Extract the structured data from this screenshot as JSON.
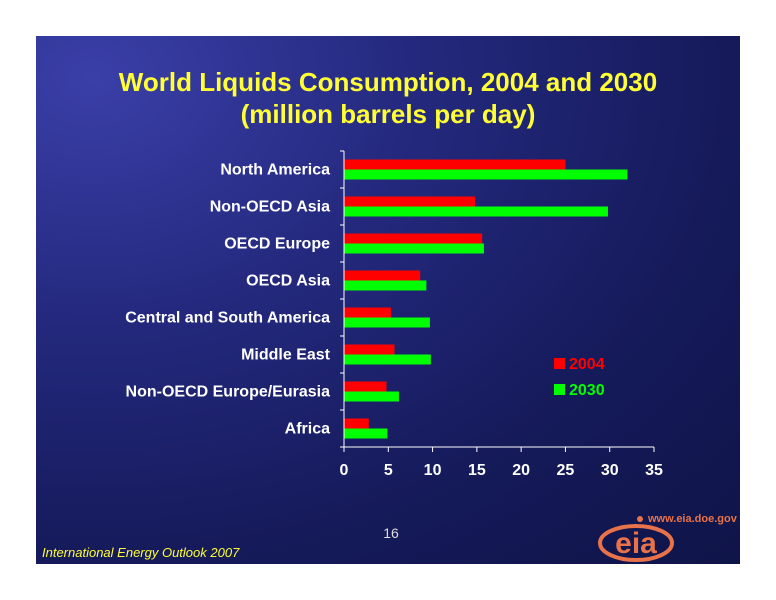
{
  "slide": {
    "title_line1": "World Liquids Consumption, 2004 and 2030",
    "title_line2": "(million barrels per day)",
    "page_number": "16",
    "source_note": "International Energy Outlook 2007",
    "logo_text": "eia",
    "logo_url": "www.eia.doe.gov"
  },
  "colors": {
    "background": "#1a1f6b",
    "title": "#ffff33",
    "series_2004": "#ff0000",
    "series_2030": "#00ff00",
    "axis": "#ffffff",
    "logo": "#e8734a"
  },
  "chart_data": {
    "type": "bar",
    "orientation": "horizontal",
    "title": "World Liquids Consumption, 2004 and 2030",
    "subtitle": "(million barrels per day)",
    "categories": [
      "North America",
      "Non-OECD Asia",
      "OECD Europe",
      "OECD Asia",
      "Central and South America",
      "Middle East",
      "Non-OECD Europe/Eurasia",
      "Africa"
    ],
    "series": [
      {
        "name": "2004",
        "color": "#ff0000",
        "values": [
          25.0,
          14.8,
          15.6,
          8.6,
          5.3,
          5.7,
          4.8,
          2.8
        ]
      },
      {
        "name": "2030",
        "color": "#00ff00",
        "values": [
          32.0,
          29.8,
          15.8,
          9.3,
          9.7,
          9.8,
          6.2,
          4.9
        ]
      }
    ],
    "xlim": [
      0,
      35
    ],
    "xticks": [
      "0",
      "5",
      "10",
      "15",
      "20",
      "25",
      "30",
      "35"
    ],
    "xlabel": "",
    "ylabel": "",
    "grid": false,
    "legend_position": "lower-right"
  }
}
